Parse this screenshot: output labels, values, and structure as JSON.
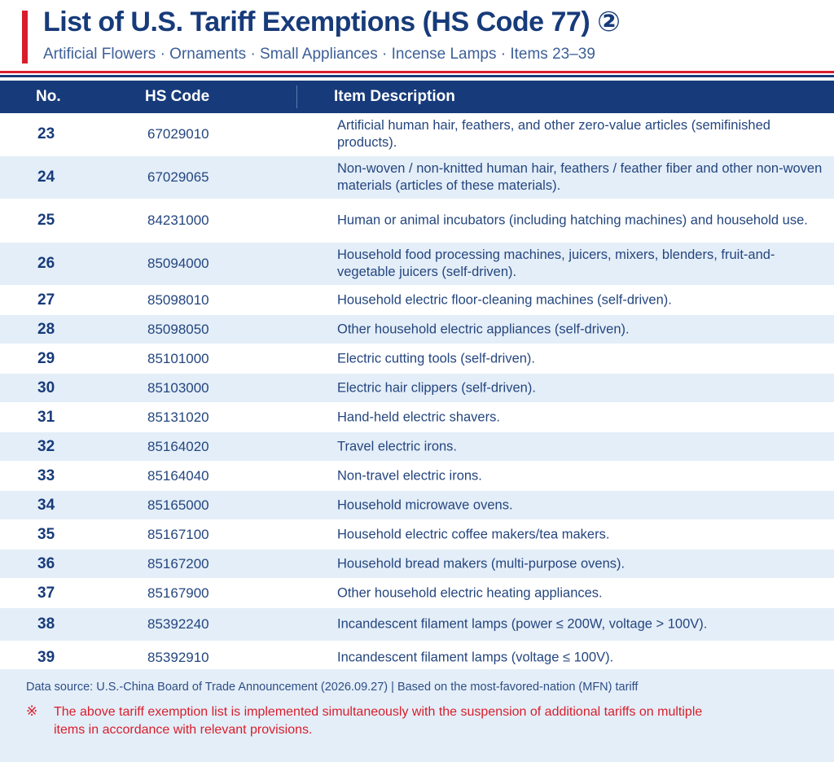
{
  "header": {
    "title": "List of U.S. Tariff Exemptions (HS Code 77) ②",
    "subtitle": "Artificial Flowers · Ornaments · Small Appliances · Incense Lamps · Items 23–39"
  },
  "table": {
    "columns": {
      "no": "No.",
      "code": "HS Code",
      "desc": "Item Description"
    },
    "rows": [
      {
        "no": "23",
        "code": "67029010",
        "desc": "Artificial human hair, feathers, and other zero-value articles (semifinished products)."
      },
      {
        "no": "24",
        "code": "67029065",
        "desc": "Non-woven / non-knitted human hair, feathers / feather fiber and other non-woven materials (articles of these materials)."
      },
      {
        "no": "25",
        "code": "84231000",
        "desc": "Human or animal incubators (including hatching machines) and household use."
      },
      {
        "no": "26",
        "code": "85094000",
        "desc": "Household food processing machines, juicers, mixers, blenders, fruit-and-vegetable juicers (self-driven)."
      },
      {
        "no": "27",
        "code": "85098010",
        "desc": "Household electric floor-cleaning machines (self-driven)."
      },
      {
        "no": "28",
        "code": "85098050",
        "desc": "Other household electric appliances (self-driven)."
      },
      {
        "no": "29",
        "code": "85101000",
        "desc": "Electric cutting tools (self-driven)."
      },
      {
        "no": "30",
        "code": "85103000",
        "desc": "Electric hair clippers (self-driven)."
      },
      {
        "no": "31",
        "code": "85131020",
        "desc": "Hand-held electric shavers."
      },
      {
        "no": "32",
        "code": "85164020",
        "desc": "Travel electric irons."
      },
      {
        "no": "33",
        "code": "85164040",
        "desc": "Non-travel electric irons."
      },
      {
        "no": "34",
        "code": "85165000",
        "desc": "Household microwave ovens."
      },
      {
        "no": "35",
        "code": "85167100",
        "desc": "Household electric coffee makers/tea makers."
      },
      {
        "no": "36",
        "code": "85167200",
        "desc": "Household bread makers (multi-purpose ovens)."
      },
      {
        "no": "37",
        "code": "85167900",
        "desc": "Other household electric heating appliances."
      },
      {
        "no": "38",
        "code": "85392240",
        "desc": "Incandescent filament lamps (power ≤ 200W, voltage > 100V)."
      },
      {
        "no": "39",
        "code": "85392910",
        "desc": "Incandescent filament lamps (voltage ≤ 100V)."
      }
    ]
  },
  "footer": {
    "source": "Data source:  U.S.-China Board of Trade Announcement (2026.09.27)   |   Based on the most-favored-nation (MFN) tariff",
    "note_mark": "※",
    "note": "The above tariff exemption list is implemented simultaneously with the suspension of additional tariffs on multiple items in accordance with relevant provisions."
  },
  "colors": {
    "navy": "#173b7a",
    "red": "#d81e2c",
    "row_alt": "#e4eef8"
  }
}
